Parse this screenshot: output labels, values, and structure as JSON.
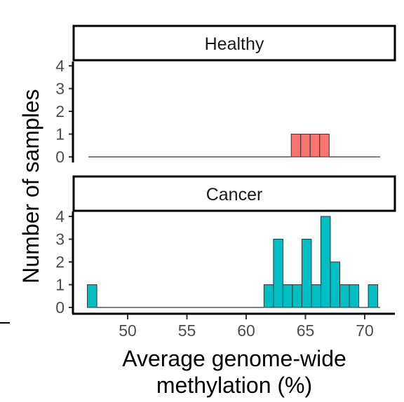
{
  "chart_data": {
    "type": "bar",
    "subtype": "faceted-histogram",
    "xlabel_lines": [
      "Average genome-wide",
      "methylation (%)"
    ],
    "ylabel": "Number of samples",
    "xlim": [
      46.5,
      71.5
    ],
    "ylim": [
      0,
      4
    ],
    "x_ticks": [
      50,
      55,
      60,
      65,
      70
    ],
    "y_ticks": [
      0,
      1,
      2,
      3,
      4
    ],
    "bin_width": 0.8,
    "panels": [
      {
        "label": "Healthy",
        "color": "#F8766D",
        "bins": [
          {
            "x0": 63.8,
            "count": 1
          },
          {
            "x0": 64.6,
            "count": 1
          },
          {
            "x0": 65.4,
            "count": 1
          },
          {
            "x0": 66.2,
            "count": 1
          }
        ]
      },
      {
        "label": "Cancer",
        "color": "#00BFC4",
        "bins": [
          {
            "x0": 46.6,
            "count": 1
          },
          {
            "x0": 61.5,
            "count": 1
          },
          {
            "x0": 62.3,
            "count": 3
          },
          {
            "x0": 63.1,
            "count": 1
          },
          {
            "x0": 63.9,
            "count": 1
          },
          {
            "x0": 64.7,
            "count": 3
          },
          {
            "x0": 65.5,
            "count": 1
          },
          {
            "x0": 66.3,
            "count": 4
          },
          {
            "x0": 67.1,
            "count": 2
          },
          {
            "x0": 67.9,
            "count": 1
          },
          {
            "x0": 68.7,
            "count": 1
          },
          {
            "x0": 70.3,
            "count": 1
          }
        ]
      }
    ],
    "grid": false,
    "legend": "none",
    "baseline_color": "#000000"
  }
}
